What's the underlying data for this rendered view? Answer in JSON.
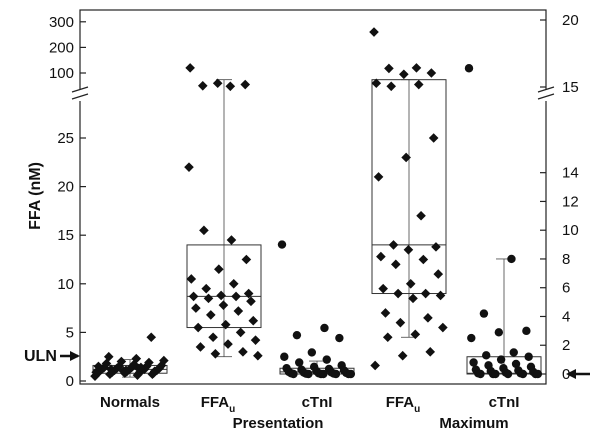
{
  "chart_data": {
    "type": "box-strip",
    "ylabel": "FFA (nM)",
    "y_left": {
      "lower_ticks": [
        "0",
        "5",
        "10",
        "15",
        "20",
        "25"
      ],
      "upper_ticks": [
        "100",
        "200",
        "300"
      ],
      "lower_range": [
        0,
        31
      ],
      "upper_range": [
        48,
        300
      ],
      "scale_break": true
    },
    "y_right": {
      "lower_ticks": [
        "0",
        "2",
        "4",
        "6",
        "8",
        "10",
        "12",
        "14"
      ],
      "upper_ticks": [
        "15",
        "20"
      ],
      "lower_range": [
        0,
        15.5
      ],
      "upper_range": [
        14.8,
        20
      ],
      "scale_break": true
    },
    "annotations": {
      "uln_label": "ULN"
    },
    "groups": [
      {
        "key": "normals",
        "label": "Normals",
        "sub": "",
        "axis": "left",
        "marker": "diamond",
        "box": {
          "q1": 0.8,
          "median": 1.2,
          "q3": 1.6,
          "whisker_low": 0.4,
          "whisker_high": 2.2
        },
        "points": [
          0.5,
          0.6,
          0.7,
          0.7,
          0.8,
          0.8,
          0.9,
          0.9,
          1.0,
          1.0,
          1.0,
          1.1,
          1.1,
          1.1,
          1.2,
          1.2,
          1.2,
          1.3,
          1.3,
          1.4,
          1.4,
          1.5,
          1.5,
          1.6,
          1.7,
          1.8,
          1.9,
          2.0,
          2.1,
          2.3,
          2.5,
          4.5,
          1.0,
          0.9,
          1.3,
          1.2,
          0.8,
          1.1,
          1.5,
          1.4
        ]
      },
      {
        "key": "pres_ffau",
        "label": "FFA",
        "sub": "u",
        "axis": "left",
        "marker": "diamond",
        "box": {
          "q1": 5.5,
          "median": 8.7,
          "q3": 14.0,
          "whisker_low": 2.5,
          "whisker_high": 31
        },
        "points": [
          22,
          14.5,
          15.5,
          12.5,
          11.5,
          10.5,
          10,
          9.5,
          9,
          8.8,
          8.7,
          8.7,
          8.5,
          8.2,
          7.8,
          7.5,
          7.2,
          6.8,
          6.2,
          5.8,
          5.5,
          5,
          4.5,
          4.2,
          3.8,
          3.5,
          3,
          2.8,
          2.6,
          40,
          50,
          55,
          60,
          120
        ]
      },
      {
        "key": "pres_ctni",
        "label": "cTnI",
        "sub": "",
        "axis": "right",
        "marker": "circle",
        "box": {
          "q1": 0.0,
          "median": 0.15,
          "q3": 0.4,
          "whisker_low": 0.0,
          "whisker_high": 0.9
        },
        "points": [
          9,
          3.2,
          2.7,
          2.5,
          1.5,
          1.2,
          1.0,
          0.8,
          0.6,
          0.5,
          0.4,
          0.35,
          0.3,
          0.25,
          0.2,
          0.15,
          0.12,
          0.1,
          0.08,
          0.05,
          0.05,
          0.03,
          0.02,
          0.0,
          0.0,
          0.0,
          0.0,
          0.0,
          0.0,
          0.0
        ]
      },
      {
        "key": "max_ffau",
        "label": "FFA",
        "sub": "u",
        "axis": "left",
        "marker": "diamond",
        "box": {
          "q1": 9.0,
          "median": 14.0,
          "q3": 31,
          "whisker_low": 4.5,
          "whisker_high": 31
        },
        "points": [
          260,
          120,
          118,
          100,
          95,
          60,
          55,
          45,
          25,
          23,
          21,
          17,
          14,
          13.8,
          13.5,
          12.8,
          12.5,
          12,
          11,
          10,
          9.5,
          9,
          9,
          8.8,
          8.5,
          7,
          6.5,
          6,
          5.5,
          4.8,
          4.5,
          3,
          2.6,
          1.6
        ]
      },
      {
        "key": "max_ctni",
        "label": "cTnI",
        "sub": "",
        "axis": "right",
        "marker": "circle",
        "box": {
          "q1": 0.0,
          "median": 0.05,
          "q3": 1.2,
          "whisker_low": 0.0,
          "whisker_high": 8
        },
        "points": [
          16.4,
          8,
          4.2,
          3,
          2.9,
          2.5,
          1.5,
          1.3,
          1.2,
          1.0,
          0.8,
          0.7,
          0.6,
          0.5,
          0.4,
          0.3,
          0.25,
          0.2,
          0.15,
          0.1,
          0.05,
          0.05,
          0.0,
          0.0,
          0.0,
          0.0,
          0.0,
          0.0,
          0.0
        ]
      }
    ],
    "section_labels": [
      {
        "key": "presentation",
        "label": "Presentation"
      },
      {
        "key": "maximum",
        "label": "Maximum"
      }
    ]
  }
}
